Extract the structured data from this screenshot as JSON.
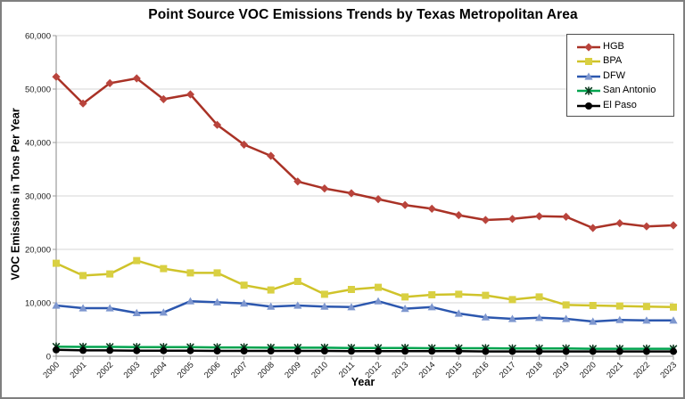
{
  "chart_data": {
    "type": "line",
    "title": "Point Source VOC Emissions Trends by Texas Metropolitan Area",
    "xlabel": "Year",
    "ylabel": "VOC Emissions in Tons Per Year",
    "x": [
      "2000",
      "2001",
      "2002",
      "2003",
      "2004",
      "2005",
      "2006",
      "2007",
      "2008",
      "2009",
      "2010",
      "2011",
      "2012",
      "2013",
      "2014",
      "2015",
      "2016",
      "2017",
      "2018",
      "2019",
      "2020",
      "2021",
      "2022",
      "2023"
    ],
    "ylim": [
      0,
      60000
    ],
    "ytick_interval": 10000,
    "ytick_labels": [
      "0",
      "10,000",
      "20,000",
      "30,000",
      "40,000",
      "50,000",
      "60,000"
    ],
    "grid": "horizontal",
    "legend_position": "top-right",
    "colors": {
      "grid": "#d6d6d6",
      "axis": "#9b9b9b",
      "tick_text": "#1a1a1a",
      "figure_border": "#7f7f7f",
      "legend_border": "#4d4d4d"
    },
    "series": [
      {
        "name": "HGB",
        "marker": "diamond",
        "color": "#a93226",
        "marker_color": "#b9443c",
        "values": [
          52300,
          47300,
          51100,
          52000,
          48100,
          49000,
          43300,
          39600,
          37500,
          32700,
          31400,
          30500,
          29400,
          28300,
          27600,
          26400,
          25500,
          25700,
          26200,
          26100,
          24000,
          24900,
          24300,
          24500
        ]
      },
      {
        "name": "BPA",
        "marker": "square",
        "color": "#cfc32a",
        "marker_color": "#d9d042",
        "values": [
          17400,
          15100,
          15400,
          17900,
          16400,
          15600,
          15600,
          13300,
          12400,
          14000,
          11600,
          12500,
          12900,
          11100,
          11500,
          11600,
          11400,
          10600,
          11100,
          9600,
          9500,
          9400,
          9300,
          9200
        ]
      },
      {
        "name": "DFW",
        "marker": "triangle",
        "color": "#2c57ae",
        "marker_color": "#7e97cf",
        "values": [
          9500,
          9000,
          9000,
          8100,
          8200,
          10300,
          10100,
          9900,
          9300,
          9500,
          9300,
          9200,
          10300,
          8900,
          9200,
          8000,
          7300,
          7000,
          7200,
          7000,
          6500,
          6800,
          6700,
          6700
        ]
      },
      {
        "name": "San Antonio",
        "marker": "xstar",
        "color": "#00a44f",
        "marker_color": "#0a3a1e",
        "values": [
          1800,
          1750,
          1750,
          1700,
          1700,
          1700,
          1650,
          1650,
          1600,
          1600,
          1600,
          1550,
          1550,
          1550,
          1500,
          1500,
          1500,
          1450,
          1450,
          1450,
          1400,
          1400,
          1400,
          1400
        ]
      },
      {
        "name": "El Paso",
        "marker": "circle",
        "color": "#000000",
        "marker_color": "#000000",
        "values": [
          1200,
          1100,
          1100,
          1050,
          1050,
          1050,
          1000,
          1000,
          1000,
          1000,
          1000,
          950,
          950,
          950,
          950,
          950,
          900,
          900,
          900,
          900,
          900,
          900,
          900,
          900
        ]
      }
    ]
  }
}
